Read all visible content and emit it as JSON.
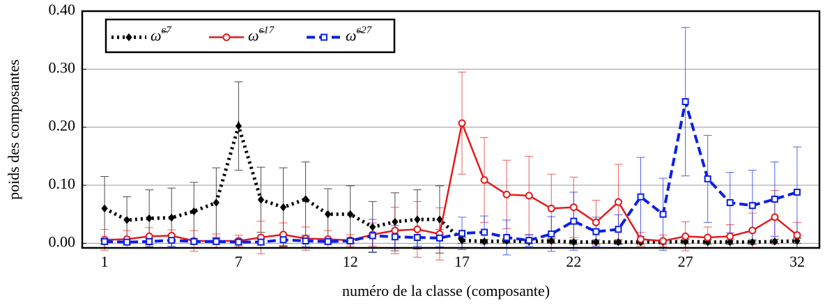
{
  "chart_data": {
    "type": "line",
    "xlabel": "numéro de la classe (composante)",
    "ylabel": "poids des composantes",
    "x": [
      1,
      2,
      3,
      4,
      5,
      6,
      7,
      8,
      9,
      10,
      11,
      12,
      13,
      14,
      15,
      16,
      17,
      18,
      19,
      20,
      21,
      22,
      23,
      24,
      25,
      26,
      27,
      28,
      29,
      30,
      31,
      32
    ],
    "xlim": [
      0,
      33
    ],
    "xticks": [
      1,
      7,
      12,
      17,
      22,
      27,
      32
    ],
    "ylim": [
      -0.008,
      0.4
    ],
    "yticks": [
      {
        "value": 0,
        "label": "0.00"
      },
      {
        "value": 0.1,
        "label": "0.10"
      },
      {
        "value": 0.2,
        "label": "0.20"
      },
      {
        "value": 0.3,
        "label": "0.30"
      },
      {
        "value": 0.4,
        "label": "0.40"
      }
    ],
    "grid": true,
    "legend": "upper left",
    "series": [
      {
        "name": "ω̃",
        "superscript": "c7",
        "color": "#000000",
        "dash": "dotted",
        "marker": "diamond",
        "values": [
          0.06,
          0.04,
          0.043,
          0.044,
          0.055,
          0.07,
          0.202,
          0.075,
          0.062,
          0.076,
          0.05,
          0.05,
          0.028,
          0.037,
          0.041,
          0.041,
          0.005,
          0.003,
          0.004,
          0.003,
          0.004,
          0.002,
          0.002,
          0.002,
          0.002,
          0.002,
          0.003,
          0.002,
          0.002,
          0.002,
          0.003,
          0.004
        ],
        "errors": [
          0.055,
          0.04,
          0.049,
          0.051,
          0.05,
          0.06,
          0.076,
          0.056,
          0.068,
          0.064,
          0.044,
          0.049,
          0.044,
          0.05,
          0.051,
          0.058,
          0.005,
          0.004,
          0.004,
          0.004,
          0.004,
          0.004,
          0.004,
          0.004,
          0.004,
          0.004,
          0.004,
          0.004,
          0.004,
          0.004,
          0.004,
          0.004
        ]
      },
      {
        "name": "ω̃",
        "superscript": "c17",
        "color": "#e31a1c",
        "dash": "solid",
        "marker": "circle",
        "values": [
          0.006,
          0.007,
          0.012,
          0.013,
          0.004,
          0.004,
          0.004,
          0.01,
          0.015,
          0.008,
          0.007,
          0.005,
          0.015,
          0.022,
          0.024,
          0.016,
          0.207,
          0.109,
          0.084,
          0.082,
          0.06,
          0.062,
          0.036,
          0.071,
          0.007,
          0.004,
          0.012,
          0.01,
          0.012,
          0.022,
          0.045,
          0.014
        ],
        "errors": [
          0.018,
          0.015,
          0.015,
          0.01,
          0.018,
          0.012,
          0.01,
          0.028,
          0.02,
          0.02,
          0.015,
          0.01,
          0.02,
          0.04,
          0.048,
          0.045,
          0.088,
          0.073,
          0.059,
          0.068,
          0.059,
          0.052,
          0.038,
          0.065,
          0.012,
          0.01,
          0.025,
          0.018,
          0.02,
          0.03,
          0.046,
          0.022
        ]
      },
      {
        "name": "ω̃",
        "superscript": "c27",
        "color": "#0a1fe6",
        "dash": "dashed",
        "marker": "square",
        "values": [
          0.003,
          0.002,
          0.003,
          0.005,
          0.003,
          0.003,
          0.002,
          0.002,
          0.006,
          0.004,
          0.003,
          0.004,
          0.013,
          0.011,
          0.01,
          0.009,
          0.017,
          0.019,
          0.01,
          0.005,
          0.016,
          0.038,
          0.02,
          0.024,
          0.08,
          0.05,
          0.244,
          0.111,
          0.07,
          0.065,
          0.076,
          0.088
        ],
        "errors": [
          0.005,
          0.005,
          0.005,
          0.01,
          0.005,
          0.005,
          0.005,
          0.005,
          0.01,
          0.01,
          0.005,
          0.005,
          0.028,
          0.02,
          0.015,
          0.015,
          0.028,
          0.028,
          0.03,
          0.01,
          0.03,
          0.05,
          0.025,
          0.025,
          0.068,
          0.062,
          0.128,
          0.075,
          0.052,
          0.061,
          0.064,
          0.078
        ]
      }
    ]
  }
}
